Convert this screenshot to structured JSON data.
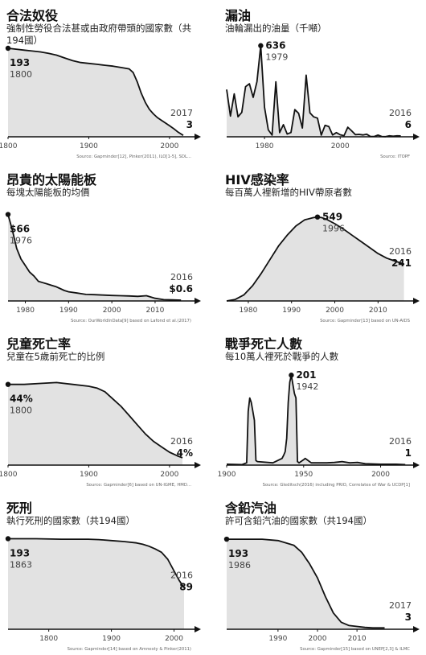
{
  "chart_data": [
    {
      "type": "area",
      "title": "合法奴役",
      "subtitle": "強制性勞役合法甚或由政府帶頭的國家數（共194國）",
      "xlim": [
        1800,
        2025
      ],
      "ylim": [
        0,
        200
      ],
      "x": [
        1800,
        1810,
        1820,
        1830,
        1840,
        1850,
        1860,
        1870,
        1880,
        1890,
        1900,
        1910,
        1920,
        1930,
        1940,
        1950,
        1955,
        1960,
        1965,
        1970,
        1975,
        1980,
        1985,
        1990,
        1995,
        2000,
        2005,
        2010,
        2017
      ],
      "y": [
        193,
        191,
        189,
        187,
        185,
        182,
        178,
        172,
        166,
        162,
        160,
        158,
        156,
        154,
        151,
        148,
        140,
        120,
        95,
        75,
        60,
        50,
        42,
        36,
        30,
        24,
        18,
        11,
        3
      ],
      "xticks": [
        "1800",
        "1900",
        "2000"
      ],
      "tickvals": [
        1800,
        1900,
        2000
      ],
      "start_label": {
        "value": "193",
        "year": "1800"
      },
      "end_label": {
        "value": "3",
        "year": "2017"
      },
      "source": "Source: Gapminder[12], Pinker(2011), ILO[1-5], SDL..."
    },
    {
      "type": "area",
      "title": "漏油",
      "subtitle": "油輪漏出的油量（千噸）",
      "xlim": [
        1970,
        2018
      ],
      "ylim": [
        0,
        640
      ],
      "x": [
        1970,
        1971,
        1972,
        1973,
        1974,
        1975,
        1976,
        1977,
        1978,
        1979,
        1980,
        1981,
        1982,
        1983,
        1984,
        1985,
        1986,
        1987,
        1988,
        1989,
        1990,
        1991,
        1992,
        1993,
        1994,
        1995,
        1996,
        1997,
        1998,
        1999,
        2000,
        2001,
        2002,
        2003,
        2004,
        2005,
        2006,
        2007,
        2008,
        2009,
        2010,
        2011,
        2012,
        2013,
        2014,
        2015,
        2016
      ],
      "y": [
        330,
        145,
        300,
        140,
        170,
        350,
        370,
        275,
        385,
        636,
        206,
        48,
        12,
        384,
        29,
        85,
        19,
        30,
        190,
        164,
        61,
        430,
        167,
        139,
        130,
        12,
        80,
        72,
        13,
        29,
        14,
        8,
        67,
        42,
        15,
        17,
        13,
        18,
        2,
        2,
        12,
        2,
        1,
        7,
        4,
        7,
        6
      ],
      "xticks": [
        "1980",
        "2000"
      ],
      "tickvals": [
        1980,
        2000
      ],
      "peak_label": {
        "value": "636",
        "year": "1979"
      },
      "end_label": {
        "value": "6",
        "year": "2016"
      },
      "source": "Source: ITOPF"
    },
    {
      "type": "area",
      "title": "昂貴的太陽能板",
      "subtitle": "每塊太陽能板的均價",
      "xlim": [
        1976,
        2018
      ],
      "ylim": [
        0,
        70
      ],
      "x": [
        1976,
        1977,
        1978,
        1979,
        1980,
        1981,
        1982,
        1983,
        1984,
        1985,
        1986,
        1987,
        1988,
        1989,
        1990,
        1992,
        1994,
        1996,
        1998,
        2000,
        2002,
        2004,
        2006,
        2008,
        2010,
        2012,
        2014,
        2016
      ],
      "y": [
        66,
        54,
        40,
        32,
        27,
        22,
        19,
        15,
        14,
        13,
        12,
        11,
        9.5,
        8,
        7,
        6,
        5,
        4.8,
        4.5,
        4.2,
        4,
        3.8,
        3.5,
        4,
        2,
        1,
        0.8,
        0.6
      ],
      "xticks": [
        "1980",
        "1990",
        "2000",
        "2010"
      ],
      "tickvals": [
        1980,
        1990,
        2000,
        2010
      ],
      "start_label": {
        "value": "$66",
        "year": "1976"
      },
      "end_label": {
        "value": "$0.6",
        "year": "2016"
      },
      "source": "Source: OurWorldInData[9] based on Lafond et al.(2017)"
    },
    {
      "type": "area",
      "title": "HIV感染率",
      "subtitle": "每百萬人裡新增的HIV帶原者數",
      "xlim": [
        1975,
        2017
      ],
      "ylim": [
        0,
        600
      ],
      "x": [
        1975,
        1977,
        1979,
        1981,
        1983,
        1985,
        1987,
        1989,
        1991,
        1993,
        1995,
        1996,
        1997,
        1998,
        2000,
        2002,
        2004,
        2006,
        2008,
        2010,
        2012,
        2014,
        2016
      ],
      "y": [
        0,
        10,
        40,
        100,
        180,
        270,
        360,
        430,
        490,
        530,
        545,
        549,
        545,
        535,
        505,
        470,
        430,
        390,
        350,
        310,
        280,
        260,
        241
      ],
      "xticks": [
        "1980",
        "1990",
        "2000",
        "2010"
      ],
      "tickvals": [
        1980,
        1990,
        2000,
        2010
      ],
      "peak_label": {
        "value": "549",
        "year": "1996"
      },
      "end_label": {
        "value": "241",
        "year": "2016"
      },
      "source": "Source: Gapminder[13] based on UN-AIDS"
    },
    {
      "type": "area",
      "title": "兒童死亡率",
      "subtitle": "兒童在5歲前死亡的比例",
      "xlim": [
        1800,
        2025
      ],
      "ylim": [
        0,
        50
      ],
      "x": [
        1800,
        1820,
        1840,
        1860,
        1880,
        1900,
        1910,
        1920,
        1930,
        1940,
        1950,
        1960,
        1970,
        1980,
        1990,
        2000,
        2010,
        2016
      ],
      "y": [
        44,
        44,
        44.5,
        45,
        44,
        43,
        42,
        40,
        36,
        32,
        27,
        22,
        17,
        13,
        10,
        7,
        5,
        4
      ],
      "xticks": [
        "1800",
        "1900",
        "2000"
      ],
      "tickvals": [
        1800,
        1900,
        2000
      ],
      "start_label": {
        "value": "44%",
        "year": "1800"
      },
      "end_label": {
        "value": "4%",
        "year": "2016"
      },
      "source": "Source: Gapminder[6] based on UN-IGME, HMD..."
    },
    {
      "type": "area",
      "title": "戰爭死亡人數",
      "subtitle": "每10萬人裡死於戰爭的人數",
      "xlim": [
        1900,
        2018
      ],
      "ylim": [
        0,
        205
      ],
      "x": [
        1900,
        1910,
        1913,
        1914,
        1915,
        1916,
        1917,
        1918,
        1919,
        1920,
        1930,
        1936,
        1937,
        1938,
        1939,
        1940,
        1941,
        1942,
        1943,
        1944,
        1945,
        1946,
        1947,
        1950,
        1951,
        1955,
        1965,
        1970,
        1975,
        1980,
        1985,
        1990,
        2000,
        2010,
        2016
      ],
      "y": [
        2,
        1,
        5,
        120,
        150,
        140,
        120,
        100,
        10,
        8,
        5,
        15,
        22,
        30,
        60,
        140,
        185,
        201,
        180,
        160,
        150,
        8,
        5,
        12,
        15,
        5,
        5,
        6,
        8,
        5,
        6,
        3,
        2,
        2,
        1
      ],
      "xticks": [
        "1900",
        "1950",
        "2000"
      ],
      "tickvals": [
        1900,
        1950,
        2000
      ],
      "peak_label": {
        "value": "201",
        "year": "1942"
      },
      "end_label": {
        "value": "1",
        "year": "2016"
      },
      "source": "Source: Gleditsch(2016) including PRIO, Correlates of War & UCDP[1]"
    },
    {
      "type": "area",
      "title": "死刑",
      "subtitle": "執行死刑的國家數（共194國）",
      "xlim": [
        1735,
        2025
      ],
      "ylim": [
        0,
        200
      ],
      "x": [
        1735,
        1780,
        1820,
        1863,
        1880,
        1900,
        1920,
        1940,
        1950,
        1960,
        1970,
        1980,
        1990,
        2000,
        2008,
        2016
      ],
      "y": [
        194,
        194,
        193,
        193,
        192,
        190,
        188,
        185,
        182,
        178,
        172,
        165,
        150,
        125,
        105,
        89
      ],
      "xticks": [
        "1800",
        "1900",
        "2000"
      ],
      "tickvals": [
        1800,
        1900,
        2000
      ],
      "start_label": {
        "value": "193",
        "year": "1863"
      },
      "end_label": {
        "value": "89",
        "year": "2016"
      },
      "source": "Source: Gapminder[14] based on Amnesty & Pinker(2011)"
    },
    {
      "type": "area",
      "title": "含鉛汽油",
      "subtitle": "許可含鉛汽油的國家數（共194國）",
      "xlim": [
        1977,
        2023
      ],
      "ylim": [
        0,
        200
      ],
      "x": [
        1977,
        1982,
        1986,
        1990,
        1994,
        1996,
        1998,
        2000,
        2002,
        2004,
        2006,
        2008,
        2010,
        2012,
        2014,
        2017
      ],
      "y": [
        193,
        193,
        193,
        190,
        180,
        165,
        140,
        110,
        70,
        35,
        15,
        8,
        6,
        4,
        3,
        3
      ],
      "xticks": [
        "1990",
        "2000",
        "2010"
      ],
      "tickvals": [
        1990,
        2000,
        2010
      ],
      "start_label": {
        "value": "193",
        "year": "1986"
      },
      "end_label": {
        "value": "3",
        "year": "2017"
      },
      "source": "Source: Gapminder[15] based on UNEP[2,3] & ILMC"
    }
  ],
  "style": {
    "fill": "#e2e2e2",
    "line": "#111111"
  }
}
